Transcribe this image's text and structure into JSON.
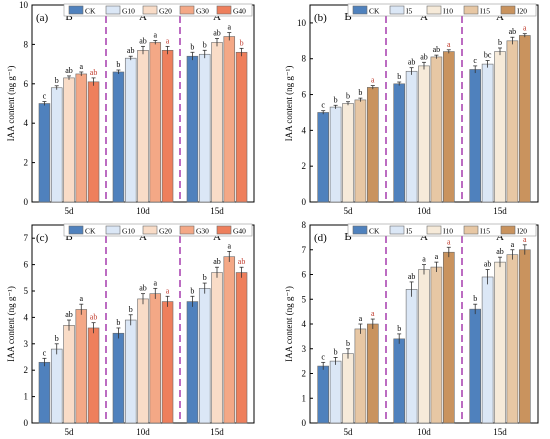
{
  "chart_data": [
    {
      "panel": "(a)",
      "type": "bar",
      "ylabel": "IAA content (ng g⁻¹)",
      "categories": [
        "5d",
        "10d",
        "15d"
      ],
      "group_letters": [
        "B",
        "A",
        "A"
      ],
      "ylim": [
        0,
        10
      ],
      "yticks": [
        0,
        2,
        4,
        6,
        8,
        10
      ],
      "legend": [
        "CK",
        "G10",
        "G20",
        "G30",
        "G40"
      ],
      "colors": [
        "#4f81bd",
        "#dbe7f6",
        "#f9dcc7",
        "#f4a886",
        "#ee7f5c"
      ],
      "series": [
        {
          "name": "CK",
          "values": [
            5.0,
            6.6,
            7.4
          ],
          "errors": [
            0.1,
            0.1,
            0.2
          ],
          "letters": [
            "c",
            "b",
            "b"
          ]
        },
        {
          "name": "G10",
          "values": [
            5.8,
            7.3,
            7.5
          ],
          "errors": [
            0.1,
            0.1,
            0.2
          ],
          "letters": [
            "b",
            "ab",
            "b"
          ]
        },
        {
          "name": "G20",
          "values": [
            6.3,
            7.7,
            8.1
          ],
          "errors": [
            0.1,
            0.2,
            0.2
          ],
          "letters": [
            "ab",
            "ab",
            "ab"
          ]
        },
        {
          "name": "G30",
          "values": [
            6.5,
            8.1,
            8.4
          ],
          "errors": [
            0.1,
            0.1,
            0.2
          ],
          "letters": [
            "a",
            "a",
            "a"
          ]
        },
        {
          "name": "G40",
          "values": [
            6.1,
            7.7,
            7.6
          ],
          "errors": [
            0.2,
            0.2,
            0.2
          ],
          "letters": [
            "ab",
            "a",
            "b"
          ]
        }
      ]
    },
    {
      "panel": "(b)",
      "type": "bar",
      "ylabel": "IAA content (ng g⁻¹)",
      "categories": [
        "5d",
        "10d",
        "15d"
      ],
      "group_letters": [
        "B",
        "A",
        "A"
      ],
      "ylim": [
        0,
        11
      ],
      "yticks": [
        0,
        2,
        4,
        6,
        8,
        10
      ],
      "legend": [
        "CK",
        "I5",
        "I10",
        "I15",
        "I20"
      ],
      "colors": [
        "#4f81bd",
        "#dbe7f6",
        "#f6ead9",
        "#e7c7a4",
        "#c9935e"
      ],
      "series": [
        {
          "name": "CK",
          "values": [
            5.0,
            6.6,
            7.4
          ],
          "errors": [
            0.1,
            0.1,
            0.2
          ],
          "letters": [
            "c",
            "b",
            "c"
          ]
        },
        {
          "name": "I5",
          "values": [
            5.3,
            7.3,
            7.7
          ],
          "errors": [
            0.1,
            0.2,
            0.2
          ],
          "letters": [
            "b",
            "ab",
            "bc"
          ]
        },
        {
          "name": "I10",
          "values": [
            5.5,
            7.6,
            8.4
          ],
          "errors": [
            0.1,
            0.2,
            0.2
          ],
          "letters": [
            "b",
            "ab",
            "b"
          ]
        },
        {
          "name": "I15",
          "values": [
            5.7,
            8.1,
            9.0
          ],
          "errors": [
            0.1,
            0.1,
            0.2
          ],
          "letters": [
            "b",
            "ab",
            "ab"
          ]
        },
        {
          "name": "I20",
          "values": [
            6.4,
            8.4,
            9.3
          ],
          "errors": [
            0.1,
            0.1,
            0.1
          ],
          "letters": [
            "a",
            "a",
            "a"
          ]
        }
      ]
    },
    {
      "panel": "(c)",
      "type": "bar",
      "ylabel": "IAA content (ng g⁻¹)",
      "categories": [
        "5d",
        "10d",
        "15d"
      ],
      "group_letters": [
        "B",
        "A",
        "A"
      ],
      "ylim": [
        0,
        7.5
      ],
      "yticks": [
        0,
        1,
        2,
        3,
        4,
        5,
        6,
        7
      ],
      "legend": [
        "CK",
        "G10",
        "G20",
        "G30",
        "G40"
      ],
      "colors": [
        "#4f81bd",
        "#dbe7f6",
        "#f9dcc7",
        "#f4a886",
        "#ee7f5c"
      ],
      "series": [
        {
          "name": "CK",
          "values": [
            2.3,
            3.4,
            4.6
          ],
          "errors": [
            0.15,
            0.2,
            0.2
          ],
          "letters": [
            "c",
            "b",
            "b"
          ]
        },
        {
          "name": "G10",
          "values": [
            2.8,
            3.9,
            5.1
          ],
          "errors": [
            0.2,
            0.2,
            0.2
          ],
          "letters": [
            "b",
            "b",
            "b"
          ]
        },
        {
          "name": "G20",
          "values": [
            3.7,
            4.7,
            5.7
          ],
          "errors": [
            0.2,
            0.2,
            0.2
          ],
          "letters": [
            "ab",
            "ab",
            "ab"
          ]
        },
        {
          "name": "G30",
          "values": [
            4.3,
            4.9,
            6.3
          ],
          "errors": [
            0.2,
            0.2,
            0.2
          ],
          "letters": [
            "a",
            "a",
            "a"
          ]
        },
        {
          "name": "G40",
          "values": [
            3.6,
            4.6,
            5.7
          ],
          "errors": [
            0.2,
            0.2,
            0.2
          ],
          "letters": [
            "ab",
            "a",
            "ab"
          ]
        }
      ]
    },
    {
      "panel": "(d)",
      "type": "bar",
      "ylabel": "IAA content (ng g⁻¹)",
      "categories": [
        "5d",
        "10d",
        "15d"
      ],
      "group_letters": [
        "B",
        "A",
        "A"
      ],
      "ylim": [
        0,
        8
      ],
      "yticks": [
        0,
        1,
        2,
        3,
        4,
        5,
        6,
        7,
        8
      ],
      "legend": [
        "CK",
        "I5",
        "I10",
        "I15",
        "I20"
      ],
      "colors": [
        "#4f81bd",
        "#dbe7f6",
        "#f6ead9",
        "#e7c7a4",
        "#c9935e"
      ],
      "series": [
        {
          "name": "CK",
          "values": [
            2.3,
            3.4,
            4.6
          ],
          "errors": [
            0.15,
            0.2,
            0.2
          ],
          "letters": [
            "c",
            "b",
            "b"
          ]
        },
        {
          "name": "I5",
          "values": [
            2.5,
            5.4,
            5.9
          ],
          "errors": [
            0.15,
            0.3,
            0.3
          ],
          "letters": [
            "b",
            "ab",
            "ab"
          ]
        },
        {
          "name": "I10",
          "values": [
            2.8,
            6.2,
            6.5
          ],
          "errors": [
            0.2,
            0.2,
            0.2
          ],
          "letters": [
            "b",
            "a",
            "ab"
          ]
        },
        {
          "name": "I15",
          "values": [
            3.8,
            6.3,
            6.8
          ],
          "errors": [
            0.2,
            0.2,
            0.2
          ],
          "letters": [
            "a",
            "a",
            "a"
          ]
        },
        {
          "name": "I20",
          "values": [
            4.0,
            6.9,
            7.0
          ],
          "errors": [
            0.2,
            0.2,
            0.2
          ],
          "letters": [
            "a",
            "a",
            "a"
          ]
        }
      ]
    }
  ]
}
